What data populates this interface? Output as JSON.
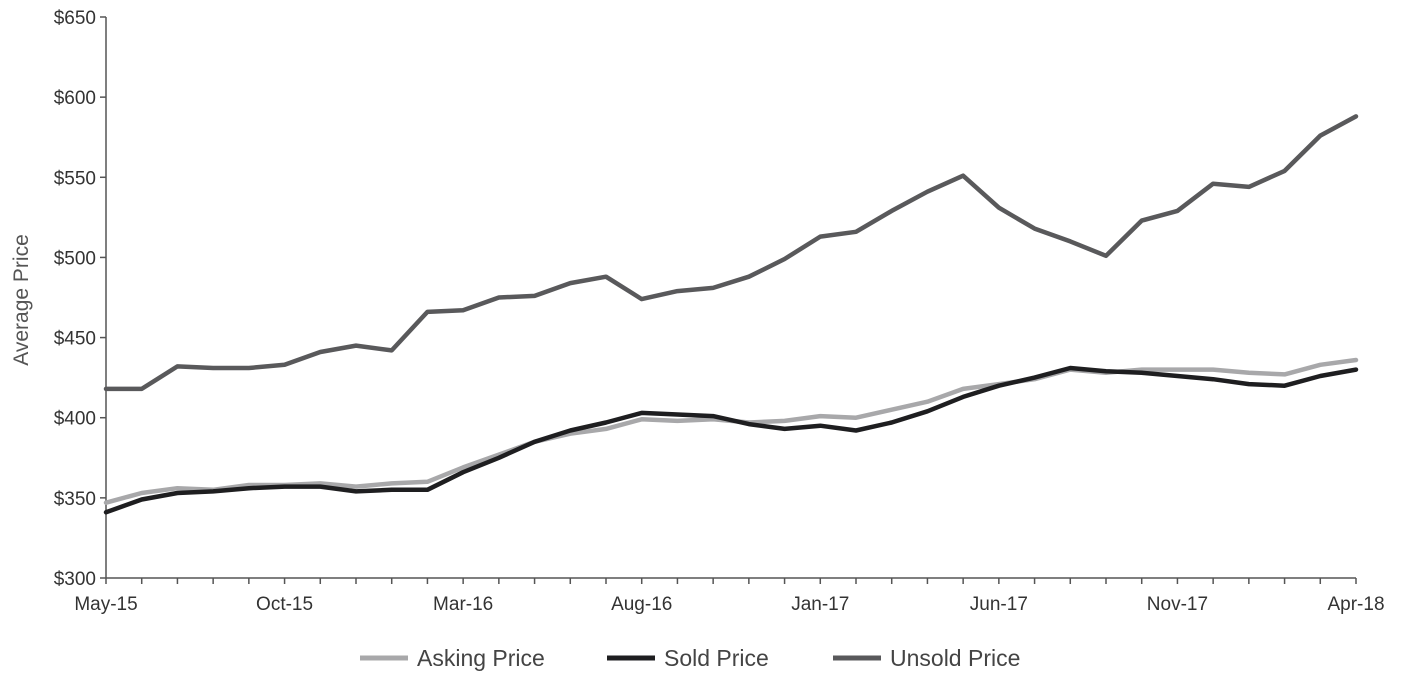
{
  "chart_data": {
    "type": "line",
    "title": "",
    "xlabel": "",
    "ylabel": "Average Price",
    "ylim": [
      300,
      650
    ],
    "y_ticks": [
      300,
      350,
      400,
      450,
      500,
      550,
      600,
      650
    ],
    "y_tick_labels": [
      "$300",
      "$350",
      "$400",
      "$450",
      "$500",
      "$550",
      "$600",
      "$650"
    ],
    "x": [
      "May-15",
      "Jun-15",
      "Jul-15",
      "Aug-15",
      "Sep-15",
      "Oct-15",
      "Nov-15",
      "Dec-15",
      "Jan-16",
      "Feb-16",
      "Mar-16",
      "Apr-16",
      "May-16",
      "Jun-16",
      "Jul-16",
      "Aug-16",
      "Sep-16",
      "Oct-16",
      "Nov-16",
      "Dec-16",
      "Jan-17",
      "Feb-17",
      "Mar-17",
      "Apr-17",
      "May-17",
      "Jun-17",
      "Jul-17",
      "Aug-17",
      "Sep-17",
      "Oct-17",
      "Nov-17",
      "Dec-17",
      "Jan-18",
      "Feb-18",
      "Mar-18",
      "Apr-18"
    ],
    "x_tick_labels": [
      "May-15",
      "Oct-15",
      "Mar-16",
      "Aug-16",
      "Jan-17",
      "Jun-17",
      "Nov-17",
      "Apr-18"
    ],
    "grid": false,
    "legend_position": "bottom",
    "series": [
      {
        "name": "Asking Price",
        "color": "#a8a8aa",
        "values": [
          347,
          353,
          356,
          355,
          358,
          358,
          359,
          357,
          359,
          360,
          369,
          377,
          385,
          390,
          393,
          399,
          398,
          399,
          397,
          398,
          401,
          400,
          405,
          410,
          418,
          421,
          424,
          430,
          428,
          430,
          430,
          430,
          428,
          427,
          433,
          436
        ]
      },
      {
        "name": "Sold Price",
        "color": "#1e1e20",
        "values": [
          341,
          349,
          353,
          354,
          356,
          357,
          357,
          354,
          355,
          355,
          366,
          375,
          385,
          392,
          397,
          403,
          402,
          401,
          396,
          393,
          395,
          392,
          397,
          404,
          413,
          420,
          425,
          431,
          429,
          428,
          426,
          424,
          421,
          420,
          426,
          430
        ]
      },
      {
        "name": "Unsold Price",
        "color": "#59595b",
        "values": [
          418,
          418,
          432,
          431,
          431,
          433,
          441,
          445,
          442,
          466,
          467,
          475,
          476,
          484,
          488,
          474,
          479,
          481,
          488,
          499,
          513,
          516,
          529,
          541,
          551,
          531,
          518,
          510,
          501,
          523,
          529,
          546,
          544,
          554,
          576,
          588
        ]
      }
    ]
  }
}
